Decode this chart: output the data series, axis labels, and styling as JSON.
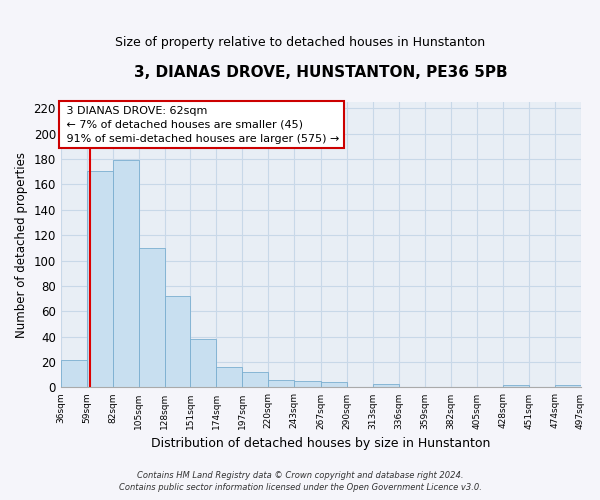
{
  "title": "3, DIANAS DROVE, HUNSTANTON, PE36 5PB",
  "subtitle": "Size of property relative to detached houses in Hunstanton",
  "xlabel": "Distribution of detached houses by size in Hunstanton",
  "ylabel": "Number of detached properties",
  "bar_edges": [
    36,
    59,
    82,
    105,
    128,
    151,
    174,
    197,
    220,
    243,
    267,
    290,
    313,
    336,
    359,
    382,
    405,
    428,
    451,
    474,
    497
  ],
  "bar_heights": [
    22,
    171,
    179,
    110,
    72,
    38,
    16,
    12,
    6,
    5,
    4,
    0,
    3,
    0,
    0,
    0,
    0,
    2,
    0,
    2
  ],
  "bar_color": "#c8dff0",
  "bar_edge_color": "#7aaed0",
  "property_line_x": 62,
  "property_line_color": "#dd0000",
  "ylim": [
    0,
    225
  ],
  "yticks": [
    0,
    20,
    40,
    60,
    80,
    100,
    120,
    140,
    160,
    180,
    200,
    220
  ],
  "annotation_title": "3 DIANAS DROVE: 62sqm",
  "annotation_line1": "← 7% of detached houses are smaller (45)",
  "annotation_line2": "91% of semi-detached houses are larger (575) →",
  "annotation_box_facecolor": "#ffffff",
  "annotation_box_edgecolor": "#cc0000",
  "footer_line1": "Contains HM Land Registry data © Crown copyright and database right 2024.",
  "footer_line2": "Contains public sector information licensed under the Open Government Licence v3.0.",
  "grid_color": "#c8d8e8",
  "background_color": "#e8eef5",
  "fig_facecolor": "#f5f5fa"
}
